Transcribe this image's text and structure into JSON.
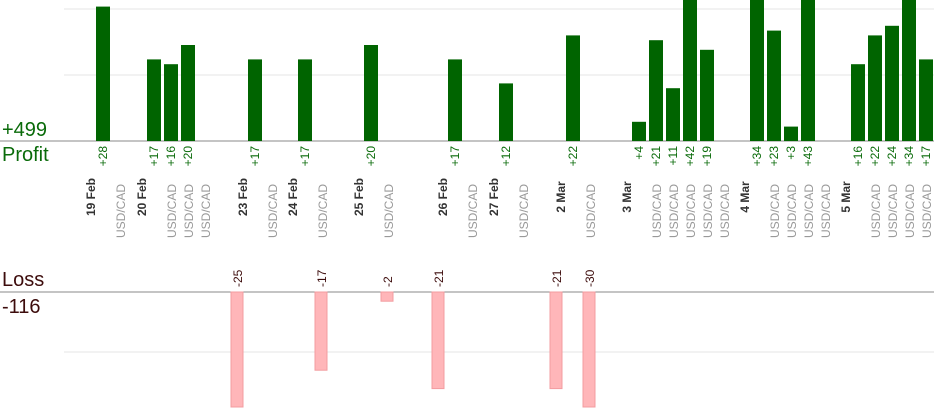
{
  "summary": {
    "profit_total": "+499",
    "profit_label": "Profit",
    "loss_label": "Loss",
    "loss_total": "-116"
  },
  "colors": {
    "profit_bar": "#006400",
    "profit_text": "#0a6b0a",
    "loss_bar": "#ffb6b9",
    "loss_text": "#3d0c0c",
    "date_text": "#333333",
    "pair_text": "#999999",
    "grid": "#e6e6e6",
    "axis": "#888888"
  },
  "chart_data": [
    {
      "type": "bar",
      "title": "",
      "series_name": "Profit",
      "categories": [
        "19 Feb",
        "20 Feb",
        "23 Feb",
        "24 Feb",
        "25 Feb",
        "26 Feb",
        "27 Feb",
        "2 Mar",
        "3 Mar",
        "4 Mar",
        "5 Mar"
      ],
      "pair": "USD/CAD",
      "grid": true,
      "trades": [
        {
          "date": "19 Feb",
          "values": [
            28
          ]
        },
        {
          "date": "20 Feb",
          "values": [
            17,
            16,
            20
          ]
        },
        {
          "date": "23 Feb",
          "values": [
            17
          ]
        },
        {
          "date": "24 Feb",
          "values": [
            17
          ]
        },
        {
          "date": "25 Feb",
          "values": [
            20
          ]
        },
        {
          "date": "26 Feb",
          "values": [
            17
          ]
        },
        {
          "date": "27 Feb",
          "values": [
            12
          ]
        },
        {
          "date": "2 Mar",
          "values": [
            22
          ]
        },
        {
          "date": "3 Mar",
          "values": [
            4,
            21,
            11,
            42,
            19
          ]
        },
        {
          "date": "4 Mar",
          "values": [
            34,
            23,
            3,
            43
          ]
        },
        {
          "date": "5 Mar",
          "values": [
            16,
            22,
            24,
            34,
            17
          ]
        }
      ]
    },
    {
      "type": "bar",
      "title": "",
      "series_name": "Loss",
      "categories": [
        "23 Feb",
        "24 Feb",
        "25 Feb",
        "26 Feb",
        "2 Mar",
        "3 Mar"
      ],
      "grid": true,
      "trades": [
        {
          "date": "23 Feb",
          "values": [
            -25
          ]
        },
        {
          "date": "24 Feb",
          "values": [
            -17
          ]
        },
        {
          "date": "25 Feb",
          "values": [
            -2
          ]
        },
        {
          "date": "26 Feb",
          "values": [
            -21
          ]
        },
        {
          "date": "2 Mar",
          "values": [
            -21
          ]
        },
        {
          "date": "3 Mar",
          "values": [
            -30
          ]
        }
      ]
    }
  ]
}
